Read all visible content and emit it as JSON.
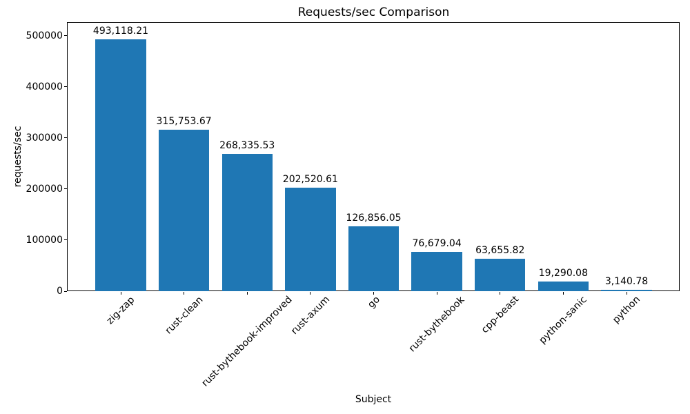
{
  "chart_data": {
    "type": "bar",
    "title": "Requests/sec Comparison",
    "xlabel": "Subject",
    "ylabel": "requests/sec",
    "categories": [
      "zig-zap",
      "rust-clean",
      "rust-bythebook-improved",
      "rust-axum",
      "go",
      "rust-bythebook",
      "cpp-beast",
      "python-sanic",
      "python"
    ],
    "values": [
      493118.21,
      315753.67,
      268335.53,
      202520.61,
      126856.05,
      76679.04,
      63655.82,
      19290.08,
      3140.78
    ],
    "value_labels": [
      "493,118.21",
      "315,753.67",
      "268,335.53",
      "202,520.61",
      "126,856.05",
      "76,679.04",
      "63,655.82",
      "19,290.08",
      "3,140.78"
    ],
    "ylim": [
      0,
      525000
    ],
    "yticks": [
      0,
      100000,
      200000,
      300000,
      400000,
      500000
    ],
    "ytick_labels": [
      "0",
      "100000",
      "200000",
      "300000",
      "400000",
      "500000"
    ],
    "bar_color": "#1f77b4",
    "grid": false,
    "legend": null,
    "x_tick_rotation_deg": 45
  }
}
